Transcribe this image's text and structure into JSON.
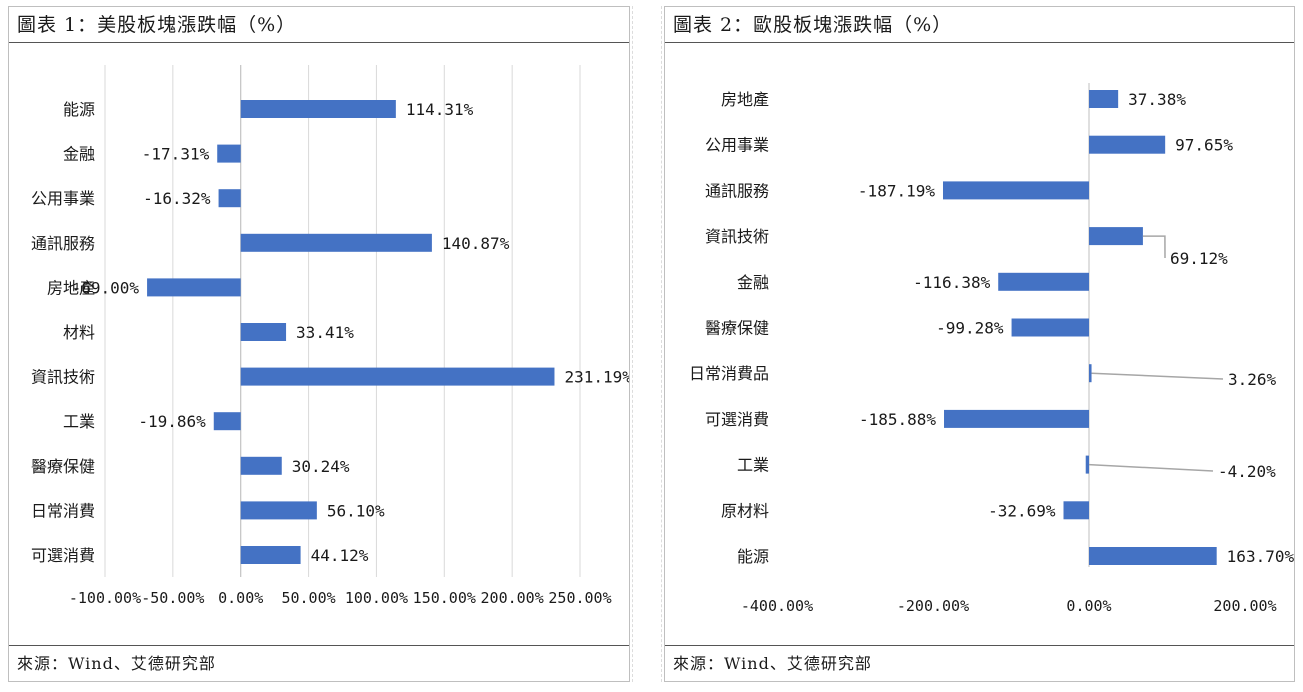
{
  "panels": {
    "left": {
      "title": "圖表 1：美股板塊漲跌幅（%）",
      "source": "來源：Wind、艾德研究部"
    },
    "right": {
      "title": "圖表 2：歐股板塊漲跌幅（%）",
      "source": "來源：Wind、艾德研究部"
    }
  },
  "chart_data": [
    {
      "type": "bar",
      "orientation": "horizontal",
      "title": "圖表 1：美股板塊漲跌幅（%）",
      "categories": [
        "能源",
        "金融",
        "公用事業",
        "通訊服務",
        "房地產",
        "材料",
        "資訊技術",
        "工業",
        "醫療保健",
        "日常消費",
        "可選消費"
      ],
      "values": [
        114.31,
        -17.31,
        -16.32,
        140.87,
        -69.0,
        33.41,
        231.19,
        -19.86,
        30.24,
        56.1,
        44.12
      ],
      "labels": [
        "114.31%",
        "-17.31%",
        "-16.32%",
        "140.87%",
        "-69.00%",
        "33.41%",
        "231.19%",
        "-19.86%",
        "30.24%",
        "56.10%",
        "44.12%"
      ],
      "xlim": [
        -100,
        250
      ],
      "xticks": [
        -100,
        -50,
        0,
        50,
        100,
        150,
        200,
        250
      ],
      "xtick_labels": [
        "-100.00%",
        "-50.00%",
        "0.00%",
        "50.00%",
        "100.00%",
        "150.00%",
        "200.00%",
        "250.00%"
      ],
      "grid": "vertical",
      "color": "#4472c4"
    },
    {
      "type": "bar",
      "orientation": "horizontal",
      "title": "圖表 2：歐股板塊漲跌幅（%）",
      "categories": [
        "房地產",
        "公用事業",
        "通訊服務",
        "資訊技術",
        "金融",
        "醫療保健",
        "日常消費品",
        "可選消費",
        "工業",
        "原材料",
        "能源"
      ],
      "values": [
        37.38,
        97.65,
        -187.19,
        69.12,
        -116.38,
        -99.28,
        3.26,
        -185.88,
        -4.2,
        -32.69,
        163.7
      ],
      "labels": [
        "37.38%",
        "97.65%",
        "-187.19%",
        "69.12%",
        "-116.38%",
        "-99.28%",
        "3.26%",
        "-185.88%",
        "-4.20%",
        "-32.69%",
        "163.70%"
      ],
      "xlim": [
        -400,
        200
      ],
      "xticks": [
        -400,
        -200,
        0,
        200
      ],
      "xtick_labels": [
        "-400.00%",
        "-200.00%",
        "0.00%",
        "200.00%"
      ],
      "grid": "none",
      "color": "#4472c4"
    }
  ]
}
